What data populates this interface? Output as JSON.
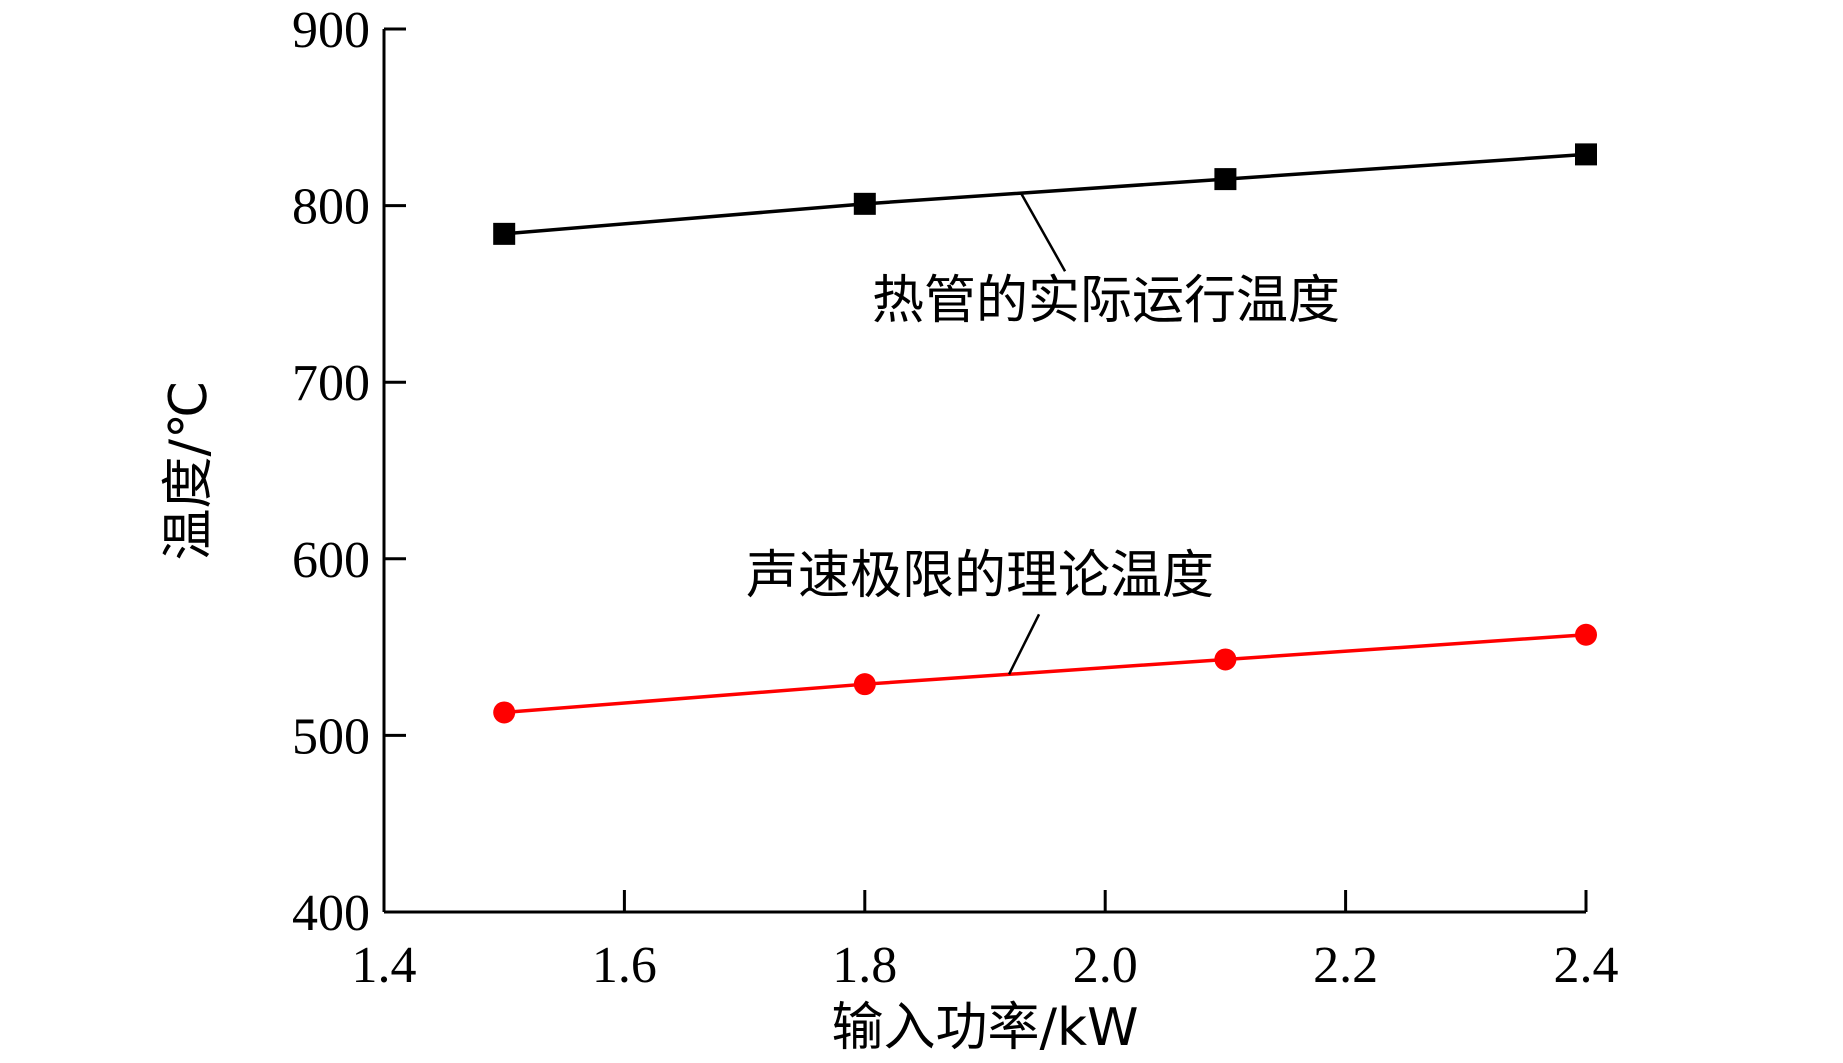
{
  "chart_data": {
    "type": "line",
    "xlabel": "输入功率/kW",
    "ylabel": "温度/℃",
    "xlim": [
      1.4,
      2.4
    ],
    "ylim": [
      400,
      900
    ],
    "x_ticks": [
      "1.4",
      "1.6",
      "1.8",
      "2.0",
      "2.2",
      "2.4"
    ],
    "y_ticks": [
      "400",
      "500",
      "600",
      "700",
      "800",
      "900"
    ],
    "grid": false,
    "legend": "none",
    "series": [
      {
        "name": "热管的实际运行温度",
        "color": "#000000",
        "marker": "square",
        "x": [
          1.5,
          1.8,
          2.1,
          2.4
        ],
        "y": [
          784,
          801,
          815,
          829
        ]
      },
      {
        "name": "声速极限的理论温度",
        "color": "#ff0000",
        "marker": "circle",
        "x": [
          1.5,
          1.8,
          2.1,
          2.4
        ],
        "y": [
          513,
          529,
          543,
          557
        ]
      }
    ]
  }
}
